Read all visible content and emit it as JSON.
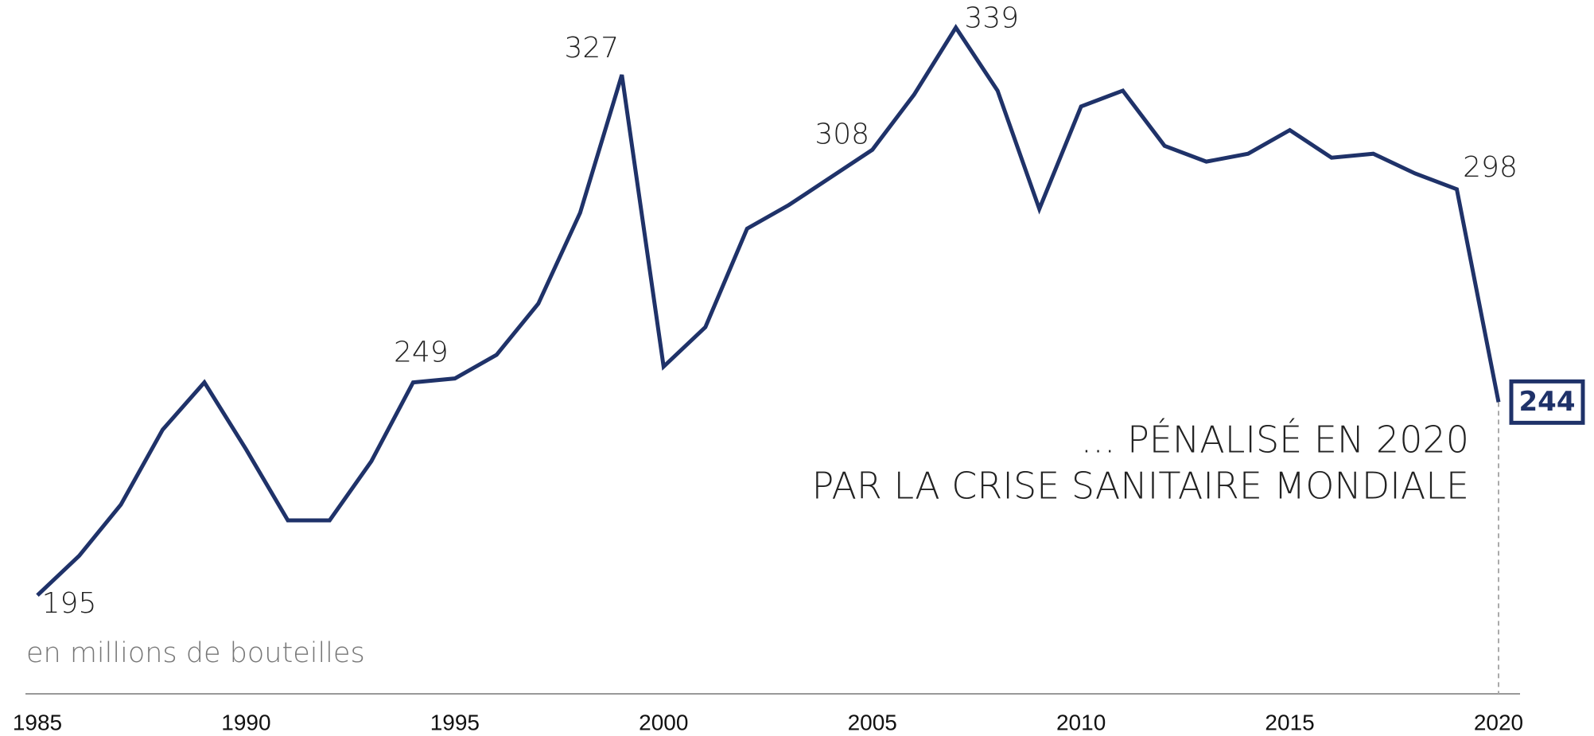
{
  "chart_data": {
    "type": "line",
    "subtitle": "en millions de bouteilles",
    "annotation": [
      "... PÉNALISÉ EN 2020",
      "PAR LA CRISE SANITAIRE MONDIALE"
    ],
    "x": [
      1985,
      1986,
      1987,
      1988,
      1989,
      1990,
      1991,
      1992,
      1993,
      1994,
      1995,
      1996,
      1997,
      1998,
      1999,
      2000,
      2001,
      2002,
      2003,
      2004,
      2005,
      2006,
      2007,
      2008,
      2009,
      2010,
      2011,
      2012,
      2013,
      2014,
      2015,
      2016,
      2017,
      2018,
      2019,
      2020
    ],
    "series": [
      {
        "color": "#1f3269",
        "values": [
          195,
          205,
          218,
          237,
          249,
          232,
          214,
          214,
          229,
          249,
          250,
          256,
          269,
          292,
          327,
          253,
          263,
          288,
          294,
          301,
          308,
          322,
          339,
          323,
          293,
          319,
          323,
          309,
          305,
          307,
          313,
          306,
          307,
          302,
          298,
          244
        ],
        "value_labels": [
          "195",
          null,
          null,
          null,
          null,
          null,
          null,
          null,
          null,
          "249",
          null,
          null,
          null,
          null,
          "327",
          null,
          null,
          null,
          null,
          null,
          "308",
          null,
          "339",
          null,
          null,
          null,
          null,
          null,
          null,
          null,
          null,
          null,
          null,
          null,
          "298",
          "244"
        ]
      }
    ],
    "xlim": [
      1985,
      2020
    ],
    "xticks": [
      1985,
      1990,
      1995,
      2000,
      2005,
      2010,
      2015,
      2020
    ],
    "ylim": [
      170,
      346
    ]
  }
}
